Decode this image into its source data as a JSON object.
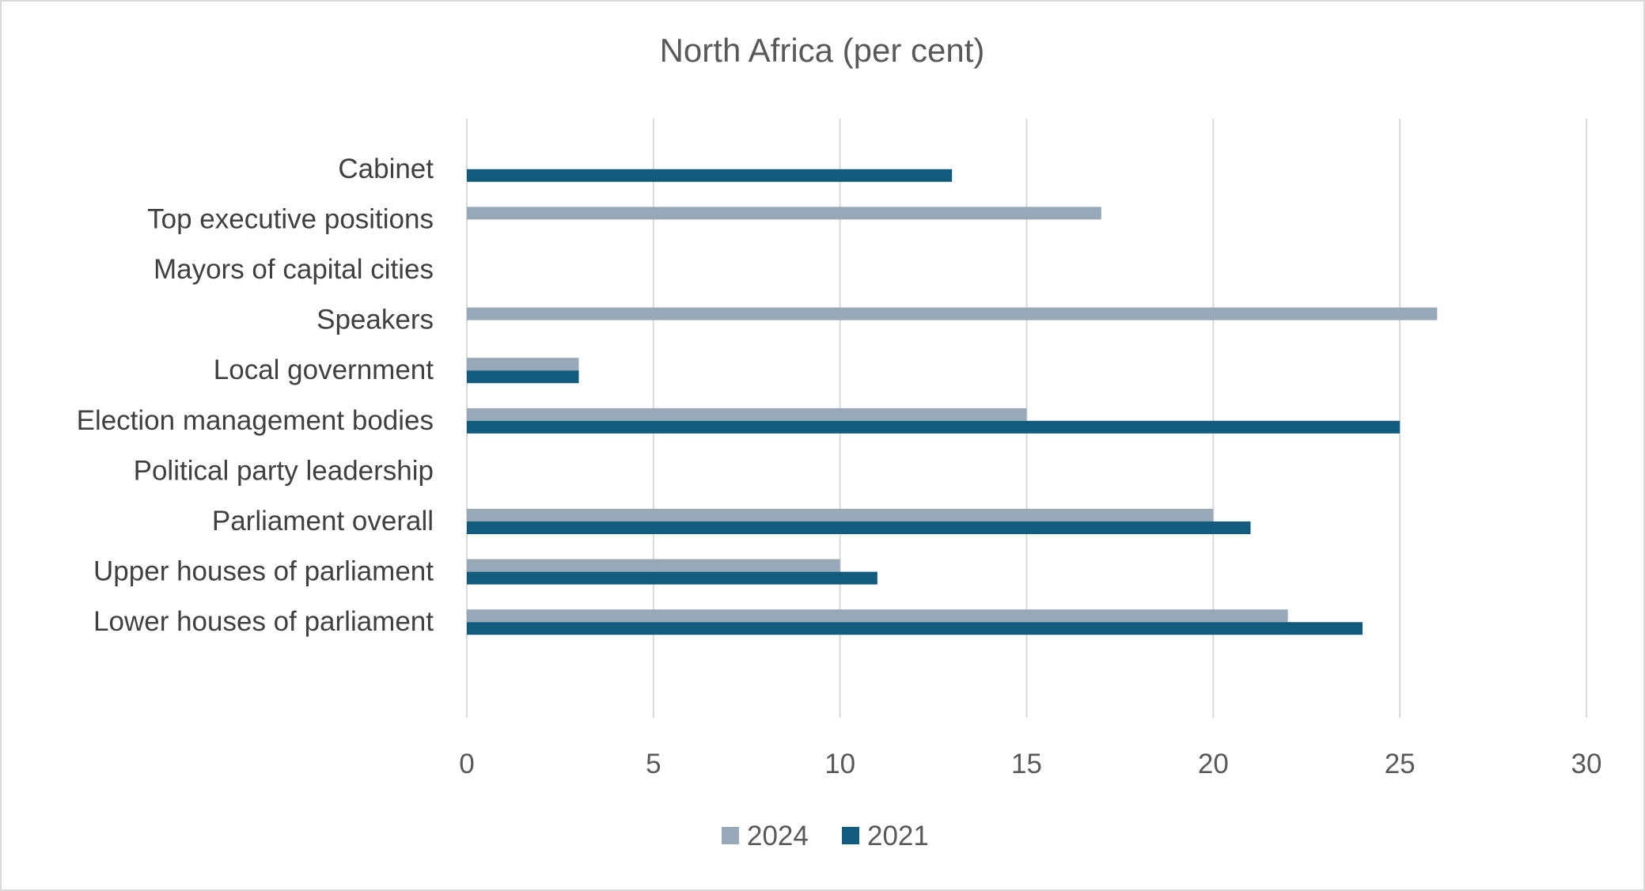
{
  "chart_data": {
    "type": "bar",
    "orientation": "horizontal",
    "title": "North Africa (per cent)",
    "xlabel": "",
    "ylabel": "",
    "xlim": [
      0,
      30
    ],
    "ticks": [
      "0",
      "5",
      "10",
      "15",
      "20",
      "25",
      "30"
    ],
    "grid": true,
    "legend_position": "bottom",
    "categories": [
      "Cabinet",
      "Top executive positions",
      "Mayors of capital cities",
      "Speakers",
      "Local government",
      "Election management bodies",
      "Political party leadership",
      "Parliament overall",
      "Upper houses of parliament",
      "Lower houses of parliament"
    ],
    "series": [
      {
        "name": "2024",
        "color": "#98a8b9",
        "values": [
          0,
          17,
          0,
          26,
          3,
          15,
          0,
          20,
          10,
          22
        ]
      },
      {
        "name": "2021",
        "color": "#135b7c",
        "values": [
          13,
          0,
          0,
          0,
          3,
          25,
          0,
          21,
          11,
          24
        ]
      }
    ]
  }
}
